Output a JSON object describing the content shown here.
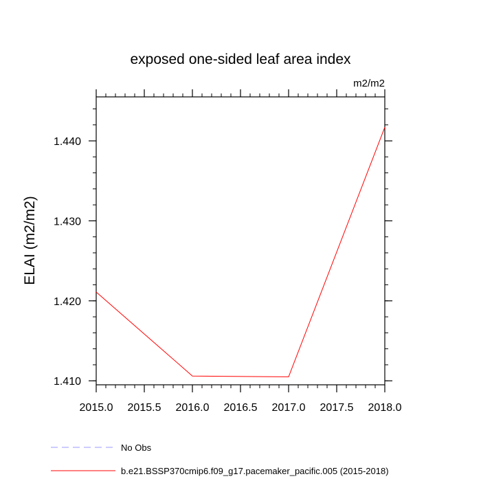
{
  "chart_data": {
    "type": "line",
    "title": "exposed one-sided leaf area index",
    "units": "m2/m2",
    "ylabel": "ELAI  (m2/m2)",
    "xlabel": "",
    "xlim": [
      2015.0,
      2018.0
    ],
    "ylim": [
      1.4095,
      1.4455
    ],
    "x_ticks": [
      2015.0,
      2015.5,
      2016.0,
      2016.5,
      2017.0,
      2017.5,
      2018.0
    ],
    "x_tick_labels": [
      "2015.0",
      "2015.5",
      "2016.0",
      "2016.5",
      "2017.0",
      "2017.5",
      "2018.0"
    ],
    "y_ticks": [
      1.41,
      1.42,
      1.43,
      1.44
    ],
    "y_tick_labels": [
      "1.410",
      "1.420",
      "1.430",
      "1.440"
    ],
    "y_minor_step": 0.002,
    "x_minor_step": 0.1,
    "grid": false,
    "legend_position": "bottom-left",
    "series": [
      {
        "name": "No Obs",
        "color": "#9999ff",
        "dash": "dashed",
        "x": [],
        "y": []
      },
      {
        "name": "b.e21.BSSP370cmip6.f09_g17.pacemaker_pacific.005 (2015-2018)",
        "color": "#ff0000",
        "dash": "solid",
        "x": [
          2015.0,
          2016.0,
          2017.0,
          2018.0
        ],
        "y": [
          1.4211,
          1.4106,
          1.4105,
          1.4417
        ]
      }
    ]
  }
}
